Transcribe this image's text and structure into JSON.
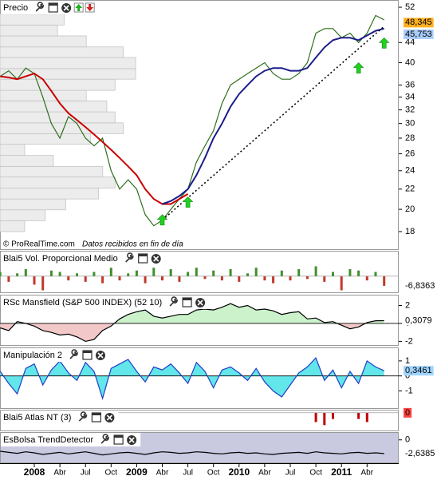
{
  "chart_data": [
    {
      "type": "line",
      "title": "Precio",
      "watermark": "© ProRealTime.com",
      "note": "Datos recibidos en fin de día",
      "log_scale": true,
      "ylim": [
        16.5,
        53
      ],
      "yticks": [
        18,
        20,
        22,
        24,
        26,
        28,
        30,
        32,
        34,
        36,
        40,
        44,
        52
      ],
      "categories": [
        null,
        null,
        null,
        null,
        "2008",
        null,
        null,
        "Abr",
        null,
        null,
        "Jul",
        null,
        null,
        "Oct",
        null,
        null,
        "2009",
        null,
        null,
        "Abr",
        null,
        null,
        "Jul",
        null,
        null,
        "Oct",
        null,
        null,
        "2010",
        null,
        null,
        "Abr",
        null,
        null,
        "Jul",
        null,
        null,
        "Oct",
        null,
        null,
        "2011",
        null,
        null,
        "Abr",
        null,
        null
      ],
      "series": [
        {
          "color": "#2f6e1e",
          "values": [
            37.5,
            38.5,
            37,
            39,
            38,
            34,
            30,
            28,
            31,
            30,
            28,
            27,
            28,
            24,
            22,
            23,
            22,
            19.5,
            18.5,
            19,
            20,
            21,
            22,
            25,
            27,
            29,
            33,
            36,
            37,
            38,
            39,
            40,
            38,
            37,
            37,
            38,
            40,
            46,
            47,
            47,
            45,
            46,
            44,
            46,
            50,
            49
          ]
        },
        {
          "color": "#c80000",
          "values": [
            37.5,
            37.3,
            37,
            37.5,
            38,
            37,
            35,
            33,
            31.5,
            30.5,
            29.5,
            28.5,
            27.5,
            26.5,
            25.5,
            24.5,
            23.5,
            22,
            21,
            20.5,
            20.5,
            21,
            21.5,
            null,
            null,
            null,
            null,
            null,
            null,
            null,
            null,
            null,
            null,
            null,
            null,
            null,
            null,
            null,
            null,
            null,
            null,
            null,
            null,
            null,
            null,
            null
          ]
        },
        {
          "color": "#1c1c8c",
          "values": [
            null,
            null,
            null,
            null,
            null,
            null,
            null,
            null,
            null,
            null,
            null,
            null,
            null,
            null,
            null,
            null,
            null,
            null,
            null,
            20.5,
            20.8,
            21.3,
            22,
            23.5,
            25.5,
            28,
            30,
            32.5,
            34.5,
            36,
            37.5,
            38.5,
            39,
            39,
            38.5,
            38.5,
            39,
            41,
            43,
            44.5,
            45,
            45,
            44.5,
            45.5,
            46.5,
            47
          ]
        },
        {
          "color": "#000000",
          "dash": true,
          "values": [
            null,
            null,
            null,
            null,
            null,
            null,
            null,
            null,
            null,
            null,
            null,
            null,
            null,
            null,
            null,
            null,
            null,
            null,
            null,
            19,
            19.68,
            20.39,
            21.12,
            21.88,
            22.66,
            23.47,
            24.32,
            25.19,
            26.09,
            27.03,
            28.0,
            29.0,
            30.04,
            31.12,
            32.24,
            33.39,
            34.59,
            35.83,
            37.12,
            38.45,
            39.83,
            41.26,
            42.74,
            44.27,
            45.86,
            47.5
          ]
        },
        {
          "type": "signal",
          "color": "#22d022",
          "values": [
            null,
            null,
            null,
            null,
            null,
            null,
            null,
            null,
            null,
            null,
            null,
            null,
            null,
            null,
            null,
            null,
            null,
            null,
            null,
            19.5,
            null,
            null,
            21.2,
            null,
            null,
            null,
            null,
            null,
            null,
            null,
            null,
            null,
            null,
            null,
            null,
            null,
            null,
            null,
            null,
            null,
            null,
            null,
            40,
            null,
            null,
            45
          ]
        }
      ],
      "volume_profile": {
        "color": "#ececec",
        "bins": [
          18,
          18.95,
          19.95,
          21.0,
          22.1,
          23.3,
          24.5,
          25.8,
          27.2,
          28.6,
          30.1,
          31.7,
          33.4,
          35.1,
          37.0,
          38.9,
          41.0,
          43.1,
          45.4,
          47.8,
          50.3
        ],
        "values": [
          30,
          55,
          80,
          120,
          140,
          125,
          65,
          30,
          110,
          150,
          140,
          130,
          105,
          140,
          165,
          165,
          150,
          105,
          70,
          78
        ]
      },
      "last_values": [
        {
          "value": 48.345,
          "label": "48,345",
          "color": "#ffb020"
        },
        {
          "value": 45.753,
          "label": "45,753",
          "color": "#a8cdfa"
        }
      ]
    },
    {
      "type": "bar",
      "title": "Blai5 Vol. Proporcional Medio",
      "ylim": [
        -12,
        18
      ],
      "color_pos": "#3f8f2a",
      "color_neg": "#c0392b",
      "values": [
        3,
        -4,
        2,
        5,
        -6,
        -10,
        4,
        3,
        -3,
        2,
        -4,
        3,
        -5,
        6,
        -3,
        2,
        4,
        -5,
        6,
        -3,
        5,
        -4,
        3,
        6,
        -2,
        4,
        -3,
        5,
        -4,
        2,
        6,
        -3,
        -5,
        4,
        -3,
        5,
        -2,
        7,
        -4,
        3,
        -10,
        5,
        4,
        -3,
        3,
        -6.8363
      ],
      "last_values": [
        {
          "value": -6.8363,
          "label": "-6,8363",
          "color": "#ffffff"
        }
      ]
    },
    {
      "type": "area",
      "title": "RSc Mansfield (S&P 500 INDEX) (52 10)",
      "ylim": [
        -2.5,
        3.2
      ],
      "yticks": [
        2,
        0,
        -2
      ],
      "line_color": "#000000",
      "color_pos": "#ccf2cc",
      "color_neg": "#f2c8c8",
      "values": [
        -0.5,
        -0.8,
        0.2,
        0,
        -0.3,
        -0.8,
        -1,
        -1.3,
        -1.2,
        -1.5,
        -2,
        -1.8,
        -0.8,
        -0.3,
        0.5,
        1,
        1.3,
        1.5,
        0.8,
        0.6,
        0.8,
        1,
        1,
        1.5,
        1.6,
        1.5,
        1.8,
        2.2,
        1.8,
        2,
        1.5,
        1.6,
        1.4,
        1,
        1.2,
        1.3,
        0.5,
        0.6,
        0.1,
        0.2,
        -0.2,
        -0.6,
        -0.4,
        0.1,
        0.3,
        0.3079
      ],
      "last_values": [
        {
          "value": 0.3079,
          "label": "0,3079",
          "color": "#ffffff"
        }
      ]
    },
    {
      "type": "area",
      "title": "Manipulación 2",
      "ylim": [
        -2.2,
        1.9
      ],
      "yticks": [
        1,
        0,
        -1
      ],
      "line_color": "#1e3cc8",
      "color_pos": "#62e6ea",
      "color_neg": "#62e6ea",
      "values": [
        0.3,
        -0.5,
        -1.2,
        0.5,
        0.8,
        -0.6,
        0.4,
        1,
        0.2,
        -0.3,
        0.9,
        0.3,
        -1.5,
        0.5,
        0.8,
        1.1,
        0.3,
        -0.4,
        0.6,
        0.4,
        0.8,
        0.2,
        -0.5,
        0.9,
        0.3,
        -0.8,
        0.4,
        0.6,
        0.2,
        -0.3,
        0.5,
        -0.4,
        -1.0,
        -1.4,
        -0.6,
        0.2,
        0.6,
        1.2,
        -0.3,
        0.4,
        -0.8,
        0.3,
        -0.5,
        1.0,
        0.6,
        0.3461
      ],
      "last_values": [
        {
          "value": 0.3461,
          "label": "0,3461",
          "color": "#9fd4ff"
        }
      ]
    },
    {
      "type": "bar",
      "title": "Blai5 Atlas NT (3)",
      "ylim": [
        -6,
        1
      ],
      "color_pos": "#c00000",
      "color_neg": "#c00000",
      "values": [
        0,
        0,
        0,
        0,
        0,
        0,
        0,
        0,
        0,
        0,
        0,
        0,
        0,
        0,
        0,
        0,
        0,
        0,
        0,
        0,
        0,
        0,
        0,
        0,
        0,
        0,
        0,
        0,
        0,
        0,
        0,
        0,
        0,
        0,
        0,
        0,
        0,
        -3,
        -4,
        -2,
        0,
        0,
        -2,
        -3,
        0,
        0
      ],
      "last_values": [
        {
          "value": 0,
          "label": "0",
          "color": "#ff4040"
        }
      ]
    },
    {
      "type": "line",
      "title": "EsBolsa TrendDetector",
      "ylim": [
        -4.5,
        1.5
      ],
      "yticks": [
        0
      ],
      "line_color": "#000000",
      "background": "#c9c9e0",
      "values": [
        -2.2,
        -2.4,
        -2.6,
        -2.3,
        -2.5,
        -2.8,
        -2.6,
        -2.4,
        -2.7,
        -2.5,
        -2.3,
        -2.6,
        -2.9,
        -2.7,
        -2.5,
        -2.4,
        -2.6,
        -2.8,
        -2.5,
        -2.3,
        -2.4,
        -2.6,
        -2.5,
        -2.3,
        -2.4,
        -2.6,
        -2.7,
        -2.5,
        -2.4,
        -2.6,
        -2.5,
        -2.7,
        -2.8,
        -2.6,
        -2.5,
        -2.4,
        -2.6,
        -2.3,
        -2.5,
        -2.6,
        -2.7,
        -2.5,
        -2.4,
        -2.6,
        -2.5,
        -2.6385
      ],
      "last_values": [
        {
          "value": -2.6385,
          "label": "-2,6385",
          "color": "#ffffff"
        }
      ]
    }
  ]
}
